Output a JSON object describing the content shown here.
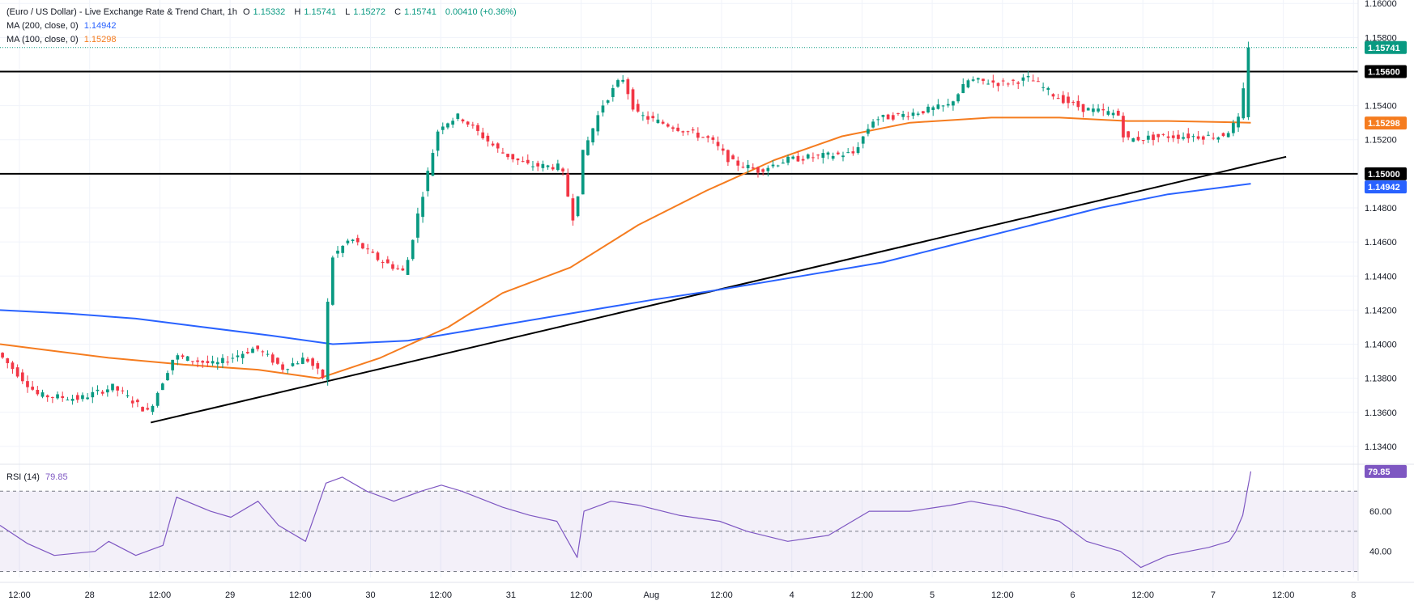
{
  "header": {
    "title": "(Euro / US Dollar) - Live Exchange Rate & Trend Chart, 1h",
    "open_label": "O",
    "open": "1.15332",
    "high_label": "H",
    "high": "1.15741",
    "low_label": "L",
    "low": "1.15272",
    "close_label": "C",
    "close": "1.15741",
    "change": "0.00410 (+0.36%)",
    "change_color": "#089981"
  },
  "indicators": {
    "ma200": {
      "label": "MA (200, close, 0)",
      "value": "1.14942",
      "color": "#2962ff"
    },
    "ma100": {
      "label": "MA (100, close, 0)",
      "value": "1.15298",
      "color": "#f57c1f"
    },
    "rsi": {
      "label": "RSI (14)",
      "value": "79.85",
      "color": "#7e57c2"
    }
  },
  "price_labels": {
    "last": "1.15741",
    "level_high": "1.15600",
    "level_low": "1.15000",
    "ma100": "1.15298",
    "ma200": "1.14942"
  },
  "colors": {
    "up": "#089981",
    "down": "#f23645",
    "grid": "#f0f3fa",
    "text": "#131722"
  },
  "chart_data": {
    "type": "candlestick",
    "symbol": "EUR/USD",
    "interval": "1h",
    "ylim": [
      1.133,
      1.1602
    ],
    "y_ticks": [
      "1.16000",
      "1.15800",
      "1.15600",
      "1.15400",
      "1.15200",
      "1.15000",
      "1.14800",
      "1.14600",
      "1.14400",
      "1.14200",
      "1.14000",
      "1.13800",
      "1.13600",
      "1.13400"
    ],
    "x_ticks": [
      "12:00",
      "28",
      "12:00",
      "29",
      "12:00",
      "30",
      "12:00",
      "31",
      "12:00",
      "Aug",
      "12:00",
      "4",
      "12:00",
      "5",
      "12:00",
      "6",
      "12:00",
      "7",
      "12:00",
      "8"
    ],
    "horizontal_levels": [
      1.156,
      1.15
    ],
    "trendline": [
      [
        0.111,
        1.1354
      ],
      [
        0.947,
        1.151
      ]
    ],
    "price_keypoints": [
      [
        0,
        1.1395
      ],
      [
        0.03,
        1.137
      ],
      [
        0.06,
        1.1368
      ],
      [
        0.085,
        1.1375
      ],
      [
        0.111,
        1.136
      ],
      [
        0.13,
        1.1393
      ],
      [
        0.16,
        1.1388
      ],
      [
        0.19,
        1.1398
      ],
      [
        0.21,
        1.1386
      ],
      [
        0.227,
        1.1392
      ],
      [
        0.24,
        1.138
      ],
      [
        0.245,
        1.145
      ],
      [
        0.26,
        1.1462
      ],
      [
        0.28,
        1.145
      ],
      [
        0.3,
        1.1442
      ],
      [
        0.31,
        1.1478
      ],
      [
        0.325,
        1.1528
      ],
      [
        0.34,
        1.1534
      ],
      [
        0.37,
        1.1513
      ],
      [
        0.39,
        1.1505
      ],
      [
        0.415,
        1.1504
      ],
      [
        0.425,
        1.147
      ],
      [
        0.43,
        1.151
      ],
      [
        0.445,
        1.154
      ],
      [
        0.46,
        1.1557
      ],
      [
        0.47,
        1.1535
      ],
      [
        0.5,
        1.1527
      ],
      [
        0.525,
        1.152
      ],
      [
        0.54,
        1.1507
      ],
      [
        0.56,
        1.1502
      ],
      [
        0.58,
        1.1508
      ],
      [
        0.6,
        1.151
      ],
      [
        0.63,
        1.1512
      ],
      [
        0.645,
        1.1532
      ],
      [
        0.67,
        1.1535
      ],
      [
        0.7,
        1.154
      ],
      [
        0.715,
        1.1555
      ],
      [
        0.74,
        1.1553
      ],
      [
        0.76,
        1.1556
      ],
      [
        0.78,
        1.1545
      ],
      [
        0.8,
        1.1538
      ],
      [
        0.825,
        1.1535
      ],
      [
        0.83,
        1.152
      ],
      [
        0.86,
        1.1522
      ],
      [
        0.9,
        1.1522
      ],
      [
        0.905,
        1.1524
      ],
      [
        0.915,
        1.1533
      ],
      [
        0.921,
        1.15741
      ]
    ],
    "ma100_keypoints": [
      [
        0,
        1.14
      ],
      [
        0.03,
        1.1397
      ],
      [
        0.08,
        1.1392
      ],
      [
        0.135,
        1.1388
      ],
      [
        0.19,
        1.1385
      ],
      [
        0.235,
        1.138
      ],
      [
        0.28,
        1.1392
      ],
      [
        0.33,
        1.141
      ],
      [
        0.37,
        1.143
      ],
      [
        0.42,
        1.1445
      ],
      [
        0.47,
        1.147
      ],
      [
        0.52,
        1.149
      ],
      [
        0.57,
        1.1508
      ],
      [
        0.62,
        1.1522
      ],
      [
        0.67,
        1.153
      ],
      [
        0.73,
        1.1533
      ],
      [
        0.78,
        1.1533
      ],
      [
        0.83,
        1.1531
      ],
      [
        0.86,
        1.1531
      ],
      [
        0.921,
        1.153
      ]
    ],
    "ma200_keypoints": [
      [
        0,
        1.142
      ],
      [
        0.05,
        1.1418
      ],
      [
        0.1,
        1.1415
      ],
      [
        0.15,
        1.141
      ],
      [
        0.2,
        1.1405
      ],
      [
        0.245,
        1.14
      ],
      [
        0.3,
        1.1402
      ],
      [
        0.36,
        1.141
      ],
      [
        0.42,
        1.1418
      ],
      [
        0.48,
        1.1426
      ],
      [
        0.53,
        1.1432
      ],
      [
        0.59,
        1.144
      ],
      [
        0.65,
        1.1448
      ],
      [
        0.7,
        1.1458
      ],
      [
        0.76,
        1.147
      ],
      [
        0.81,
        1.148
      ],
      [
        0.86,
        1.1488
      ],
      [
        0.921,
        1.14942
      ]
    ],
    "rsi": {
      "ylim": [
        27,
        83
      ],
      "ticks": [
        60,
        40
      ],
      "levels": [
        70,
        50,
        30
      ],
      "keypoints": [
        [
          0,
          53
        ],
        [
          0.02,
          44
        ],
        [
          0.04,
          38
        ],
        [
          0.07,
          40
        ],
        [
          0.08,
          45
        ],
        [
          0.1,
          38
        ],
        [
          0.12,
          43
        ],
        [
          0.13,
          67
        ],
        [
          0.155,
          60
        ],
        [
          0.17,
          57
        ],
        [
          0.19,
          65
        ],
        [
          0.205,
          53
        ],
        [
          0.225,
          45
        ],
        [
          0.24,
          74
        ],
        [
          0.252,
          77
        ],
        [
          0.27,
          70
        ],
        [
          0.29,
          65
        ],
        [
          0.31,
          70
        ],
        [
          0.325,
          73
        ],
        [
          0.34,
          70
        ],
        [
          0.37,
          62
        ],
        [
          0.39,
          58
        ],
        [
          0.41,
          55
        ],
        [
          0.425,
          37
        ],
        [
          0.43,
          60
        ],
        [
          0.45,
          65
        ],
        [
          0.47,
          63
        ],
        [
          0.5,
          58
        ],
        [
          0.53,
          55
        ],
        [
          0.55,
          50
        ],
        [
          0.58,
          45
        ],
        [
          0.61,
          48
        ],
        [
          0.64,
          60
        ],
        [
          0.67,
          60
        ],
        [
          0.7,
          63
        ],
        [
          0.715,
          65
        ],
        [
          0.74,
          62
        ],
        [
          0.78,
          55
        ],
        [
          0.8,
          45
        ],
        [
          0.825,
          40
        ],
        [
          0.84,
          32
        ],
        [
          0.86,
          38
        ],
        [
          0.89,
          42
        ],
        [
          0.905,
          45
        ],
        [
          0.91,
          50
        ],
        [
          0.915,
          58
        ],
        [
          0.921,
          79.85
        ]
      ]
    }
  }
}
